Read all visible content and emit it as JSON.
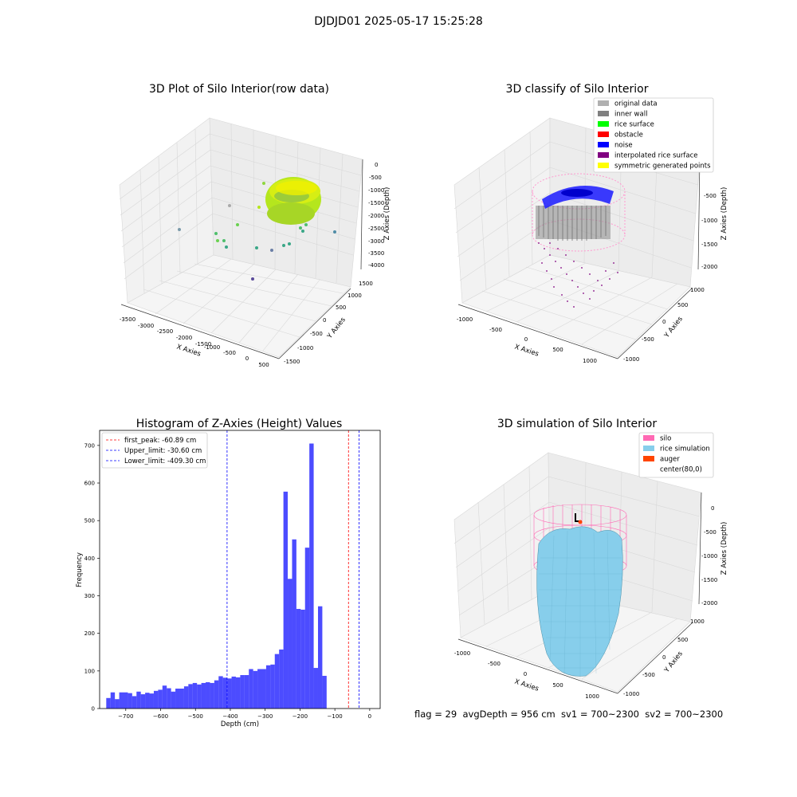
{
  "suptitle": "DJDJD01 2025-05-17 15:25:28",
  "panels": {
    "raw": {
      "title": "3D Plot of Silo Interior(row data)",
      "xlabel": "X Axies",
      "ylabel": "Y Axies",
      "zlabel": "Z Axies (Depth)",
      "xticks": [
        "-3500",
        "-3000",
        "-2500",
        "-2000",
        "-1500",
        "-1000",
        "-500",
        "0",
        "500"
      ],
      "yticks": [
        "-1500",
        "-1000",
        "-500",
        "0",
        "500",
        "1000",
        "1500"
      ],
      "zticks": [
        "0",
        "-500",
        "-1000",
        "-1500",
        "-2000",
        "-2500",
        "-3000",
        "-3500",
        "-4000"
      ]
    },
    "classify": {
      "title": "3D classify of Silo Interior",
      "xlabel": "X Axies",
      "ylabel": "Y Axies",
      "zlabel": "Z Axies (Depth)",
      "xticks": [
        "-1000",
        "-500",
        "0",
        "500",
        "1000"
      ],
      "yticks": [
        "-1000",
        "-500",
        "0",
        "500",
        "1000"
      ],
      "zticks": [
        "-500",
        "-1000",
        "-1500",
        "-2000"
      ],
      "legend": [
        {
          "label": "original data",
          "color": "#b0b0b0"
        },
        {
          "label": "inner wall",
          "color": "#808080"
        },
        {
          "label": "rice surface",
          "color": "#00ff00"
        },
        {
          "label": "obstacle",
          "color": "#ff0000"
        },
        {
          "label": "noise",
          "color": "#0000ff"
        },
        {
          "label": "interpolated rice surface",
          "color": "#800080"
        },
        {
          "label": "symmetric generated points",
          "color": "#ffff00"
        }
      ]
    },
    "simulation": {
      "title": "3D simulation of Silo Interior",
      "xlabel": "X Axies",
      "ylabel": "Y Axies",
      "zlabel": "Z Axies (Depth)",
      "xticks": [
        "-1000",
        "-500",
        "0",
        "500",
        "1000"
      ],
      "yticks": [
        "-1000",
        "-500",
        "0",
        "500",
        "1000"
      ],
      "zticks": [
        "0",
        "-500",
        "-1000",
        "-1500",
        "-2000"
      ],
      "legend": [
        {
          "label": "silo",
          "color": "#ff69b4"
        },
        {
          "label": "rice simulation",
          "color": "#87ceeb"
        },
        {
          "label": "auger",
          "color": "#ff4500"
        },
        {
          "label": "center(80,0)",
          "color": "#ffffff"
        }
      ]
    }
  },
  "chart_data": {
    "type": "bar",
    "title": "Histogram of Z-Axies (Height) Values",
    "xlabel": "Depth (cm)",
    "ylabel": "Frequency",
    "xlim": [
      -775,
      30
    ],
    "ylim": [
      0,
      740
    ],
    "xticks": [
      -700,
      -600,
      -500,
      -400,
      -300,
      -200,
      -100,
      0
    ],
    "yticks": [
      0,
      100,
      200,
      300,
      400,
      500,
      600,
      700
    ],
    "bar_color": "#0000ff",
    "bin_width": 12.4,
    "bin_start": -756,
    "values": [
      28,
      43,
      25,
      43,
      43,
      41,
      33,
      45,
      38,
      42,
      40,
      47,
      50,
      61,
      54,
      45,
      53,
      53,
      59,
      65,
      68,
      64,
      68,
      70,
      68,
      75,
      86,
      82,
      80,
      85,
      83,
      89,
      89,
      105,
      100,
      105,
      105,
      115,
      117,
      145,
      157,
      577,
      345,
      450,
      265,
      263,
      428,
      705,
      108,
      272,
      87
    ],
    "lines": [
      {
        "label": "first_peak: -60.89 cm",
        "x": -60.89,
        "color": "#ff0000"
      },
      {
        "label": "Upper_limit: -30.60 cm",
        "x": -30.6,
        "color": "#0000ff"
      },
      {
        "label": "Lower_limit: -409.30 cm",
        "x": -409.3,
        "color": "#0000ff"
      }
    ],
    "legend": "top-left"
  },
  "footer": "flag = 29  avgDepth = 956 cm  sv1 = 700~2300  sv2 = 700~2300"
}
